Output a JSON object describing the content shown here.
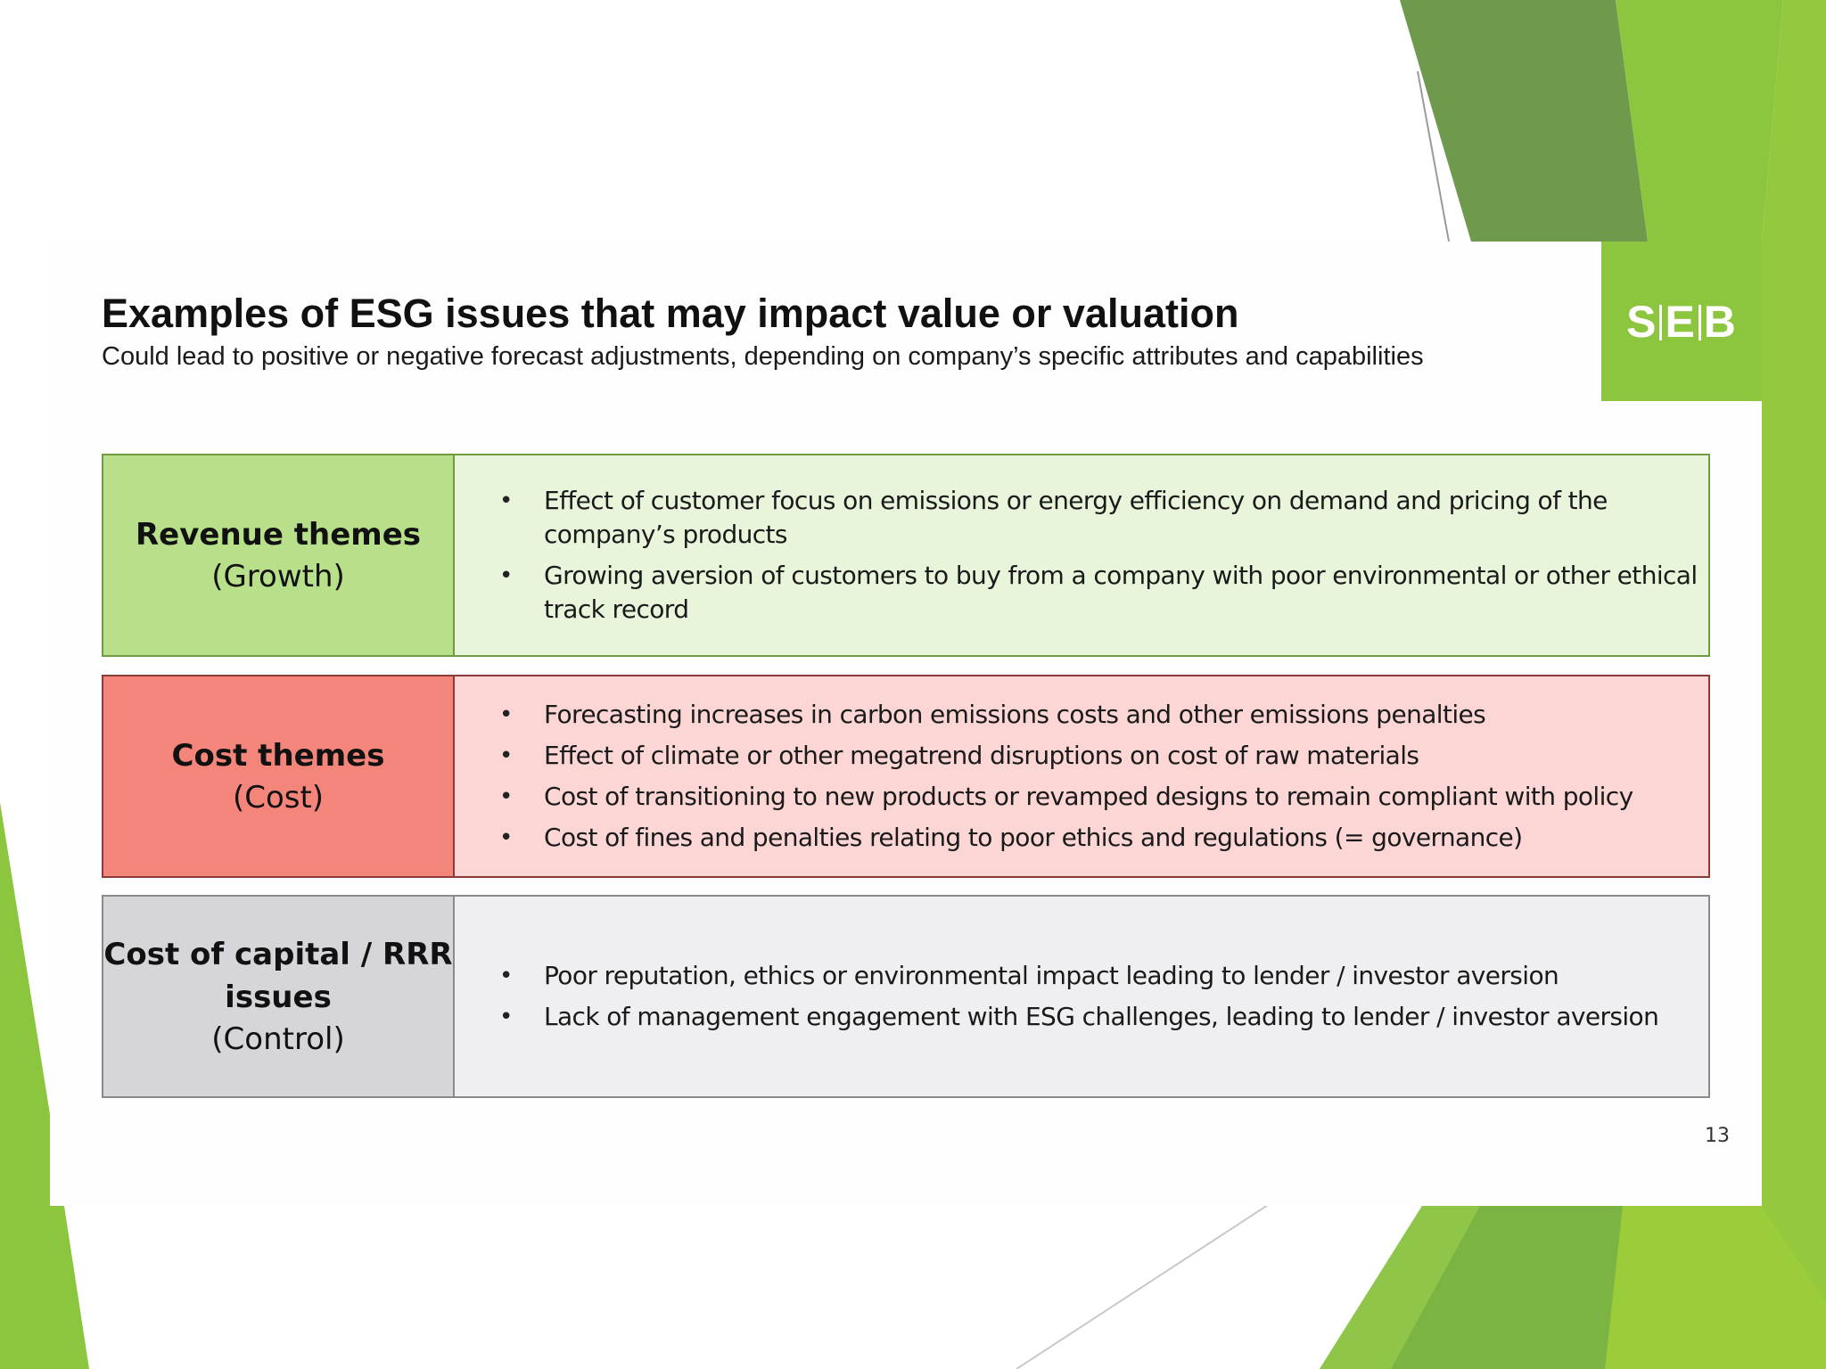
{
  "slide": {
    "title": "Examples of ESG issues that may impact value or valuation",
    "subtitle": "Could lead to positive or negative forecast adjustments, depending on company’s specific attributes and capabilities",
    "logo": {
      "left": "S",
      "middle": "E",
      "right": "B",
      "color": "#8cc63f"
    },
    "page_number": "13"
  },
  "themes": [
    {
      "title": "Revenue themes",
      "subtitle": "(Growth)",
      "fill": "#b8e08a",
      "content_fill": "#e9f5da",
      "bullets": [
        "Effect of customer focus on emissions or energy efficiency on demand and pricing of the company’s products",
        "Growing aversion of customers to buy from a company with poor environmental or other ethical track record"
      ]
    },
    {
      "title": "Cost themes",
      "subtitle": "(Cost)",
      "fill": "#f4857a",
      "content_fill": "#fcd6d5",
      "bullets": [
        "Forecasting increases in carbon emissions costs and other emissions penalties",
        "Effect of climate or other megatrend disruptions on cost of raw materials",
        "Cost of transitioning to new products  or revamped designs to remain compliant  with policy",
        "Cost of fines and penalties relating to poor ethics  and regulations (= governance)"
      ]
    },
    {
      "title": "Cost of capital / RRR issues",
      "subtitle": "(Control)",
      "fill": "#d6d5d9",
      "content_fill": "#efeef1",
      "bullets": [
        "Poor reputation, ethics or environmental impact leading to lender / investor aversion",
        "Lack of management engagement with ESG challenges, leading to lender / investor aversion"
      ]
    }
  ],
  "bullet_glyph": "•"
}
